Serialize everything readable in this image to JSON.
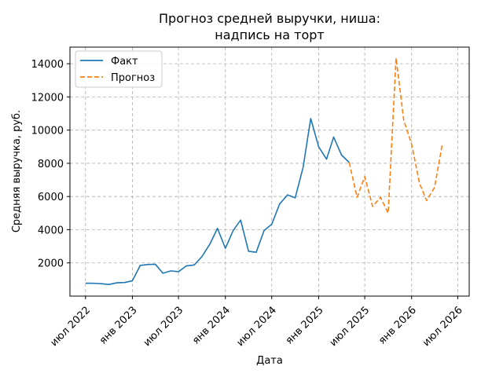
{
  "chart_data": {
    "type": "line",
    "title_lines": [
      "Прогноз средней выручки, ниша:",
      "надпись на торт"
    ],
    "xlabel": "Дата",
    "ylabel": "Средняя выручка, руб.",
    "ylim": [
      0,
      15000
    ],
    "xlim": [
      "2022-05-01",
      "2026-08-15"
    ],
    "y_ticks": [
      2000,
      4000,
      6000,
      8000,
      10000,
      12000,
      14000
    ],
    "x_ticks": [
      {
        "date": "2022-07-01",
        "label": "июл 2022"
      },
      {
        "date": "2023-01-01",
        "label": "янв 2023"
      },
      {
        "date": "2023-07-01",
        "label": "июл 2023"
      },
      {
        "date": "2024-01-01",
        "label": "янв 2024"
      },
      {
        "date": "2024-07-01",
        "label": "июл 2024"
      },
      {
        "date": "2025-01-01",
        "label": "янв 2025"
      },
      {
        "date": "2025-07-01",
        "label": "июл 2025"
      },
      {
        "date": "2026-01-01",
        "label": "янв 2026"
      },
      {
        "date": "2026-07-01",
        "label": "июл 2026"
      }
    ],
    "grid": true,
    "legend_position": "top-left",
    "series": [
      {
        "name": "Факт",
        "color": "#1f77b4",
        "style": "solid",
        "points": [
          {
            "x": "2022-07-01",
            "y": 780
          },
          {
            "x": "2022-08-01",
            "y": 770
          },
          {
            "x": "2022-09-01",
            "y": 750
          },
          {
            "x": "2022-10-01",
            "y": 700
          },
          {
            "x": "2022-11-01",
            "y": 800
          },
          {
            "x": "2022-12-01",
            "y": 820
          },
          {
            "x": "2023-01-01",
            "y": 920
          },
          {
            "x": "2023-02-01",
            "y": 1850
          },
          {
            "x": "2023-03-01",
            "y": 1900
          },
          {
            "x": "2023-04-01",
            "y": 1920
          },
          {
            "x": "2023-05-01",
            "y": 1380
          },
          {
            "x": "2023-06-01",
            "y": 1520
          },
          {
            "x": "2023-07-01",
            "y": 1470
          },
          {
            "x": "2023-08-01",
            "y": 1820
          },
          {
            "x": "2023-09-01",
            "y": 1880
          },
          {
            "x": "2023-10-01",
            "y": 2380
          },
          {
            "x": "2023-11-01",
            "y": 3130
          },
          {
            "x": "2023-12-01",
            "y": 4080
          },
          {
            "x": "2024-01-01",
            "y": 2880
          },
          {
            "x": "2024-02-01",
            "y": 3960
          },
          {
            "x": "2024-03-01",
            "y": 4580
          },
          {
            "x": "2024-04-01",
            "y": 2700
          },
          {
            "x": "2024-05-01",
            "y": 2640
          },
          {
            "x": "2024-06-01",
            "y": 3950
          },
          {
            "x": "2024-07-01",
            "y": 4330
          },
          {
            "x": "2024-08-01",
            "y": 5550
          },
          {
            "x": "2024-09-01",
            "y": 6100
          },
          {
            "x": "2024-10-01",
            "y": 5920
          },
          {
            "x": "2024-11-01",
            "y": 7750
          },
          {
            "x": "2024-12-01",
            "y": 10700
          },
          {
            "x": "2025-01-01",
            "y": 9000
          },
          {
            "x": "2025-02-01",
            "y": 8250
          },
          {
            "x": "2025-03-01",
            "y": 9580
          },
          {
            "x": "2025-04-01",
            "y": 8500
          },
          {
            "x": "2025-05-01",
            "y": 8050
          }
        ]
      },
      {
        "name": "Прогноз",
        "color": "#ff7f0e",
        "style": "dashed",
        "points": [
          {
            "x": "2025-05-01",
            "y": 8050
          },
          {
            "x": "2025-06-01",
            "y": 5950
          },
          {
            "x": "2025-07-01",
            "y": 7200
          },
          {
            "x": "2025-08-01",
            "y": 5400
          },
          {
            "x": "2025-09-01",
            "y": 5950
          },
          {
            "x": "2025-10-01",
            "y": 5000
          },
          {
            "x": "2025-11-01",
            "y": 14350
          },
          {
            "x": "2025-12-01",
            "y": 10600
          },
          {
            "x": "2026-01-01",
            "y": 9150
          },
          {
            "x": "2026-02-01",
            "y": 6800
          },
          {
            "x": "2026-03-01",
            "y": 5750
          },
          {
            "x": "2026-04-01",
            "y": 6550
          },
          {
            "x": "2026-05-01",
            "y": 9120
          }
        ]
      }
    ]
  }
}
